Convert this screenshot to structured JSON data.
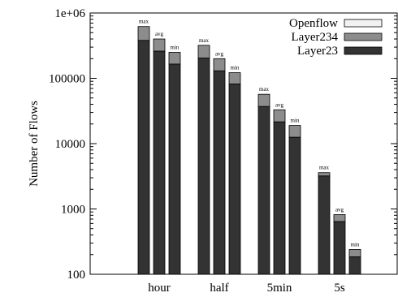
{
  "chart_data": {
    "type": "bar",
    "title": "",
    "xlabel": "",
    "ylabel": "Number of Flows",
    "yscale": "log",
    "ylim": [
      100,
      1000000
    ],
    "y_ticks": [
      "100",
      "1000",
      "10000",
      "100000",
      "1e+06"
    ],
    "categories": [
      "hour",
      "half",
      "5min",
      "5s"
    ],
    "bar_labels": [
      "max",
      "avg",
      "min"
    ],
    "legend_position": "top-right",
    "grid": false,
    "series": [
      {
        "name": "Openflow",
        "color": "#f2f2f2"
      },
      {
        "name": "Layer234",
        "color": "#8c8c8c"
      },
      {
        "name": "Layer23",
        "color": "#333333"
      }
    ],
    "groups": [
      {
        "category": "hour",
        "bars": [
          {
            "label": "max",
            "layer23": 380000,
            "layer234": 620000,
            "openflow": 620000
          },
          {
            "label": "avg",
            "layer23": 260000,
            "layer234": 400000,
            "openflow": 400000
          },
          {
            "label": "min",
            "layer23": 165000,
            "layer234": 250000,
            "openflow": 250000
          }
        ]
      },
      {
        "category": "half",
        "bars": [
          {
            "label": "max",
            "layer23": 205000,
            "layer234": 320000,
            "openflow": 320000
          },
          {
            "label": "avg",
            "layer23": 130000,
            "layer234": 200000,
            "openflow": 200000
          },
          {
            "label": "min",
            "layer23": 82000,
            "layer234": 122000,
            "openflow": 122000
          }
        ]
      },
      {
        "category": "5min",
        "bars": [
          {
            "label": "max",
            "layer23": 37000,
            "layer234": 57000,
            "openflow": 57000
          },
          {
            "label": "avg",
            "layer23": 21500,
            "layer234": 33000,
            "openflow": 33000
          },
          {
            "label": "min",
            "layer23": 12500,
            "layer234": 19000,
            "openflow": 19000
          }
        ]
      },
      {
        "category": "5s",
        "bars": [
          {
            "label": "max",
            "layer23": 3200,
            "layer234": 3600,
            "openflow": 3600
          },
          {
            "label": "avg",
            "layer23": 640,
            "layer234": 820,
            "openflow": 820
          },
          {
            "label": "min",
            "layer23": 185,
            "layer234": 240,
            "openflow": 240
          }
        ]
      }
    ]
  }
}
